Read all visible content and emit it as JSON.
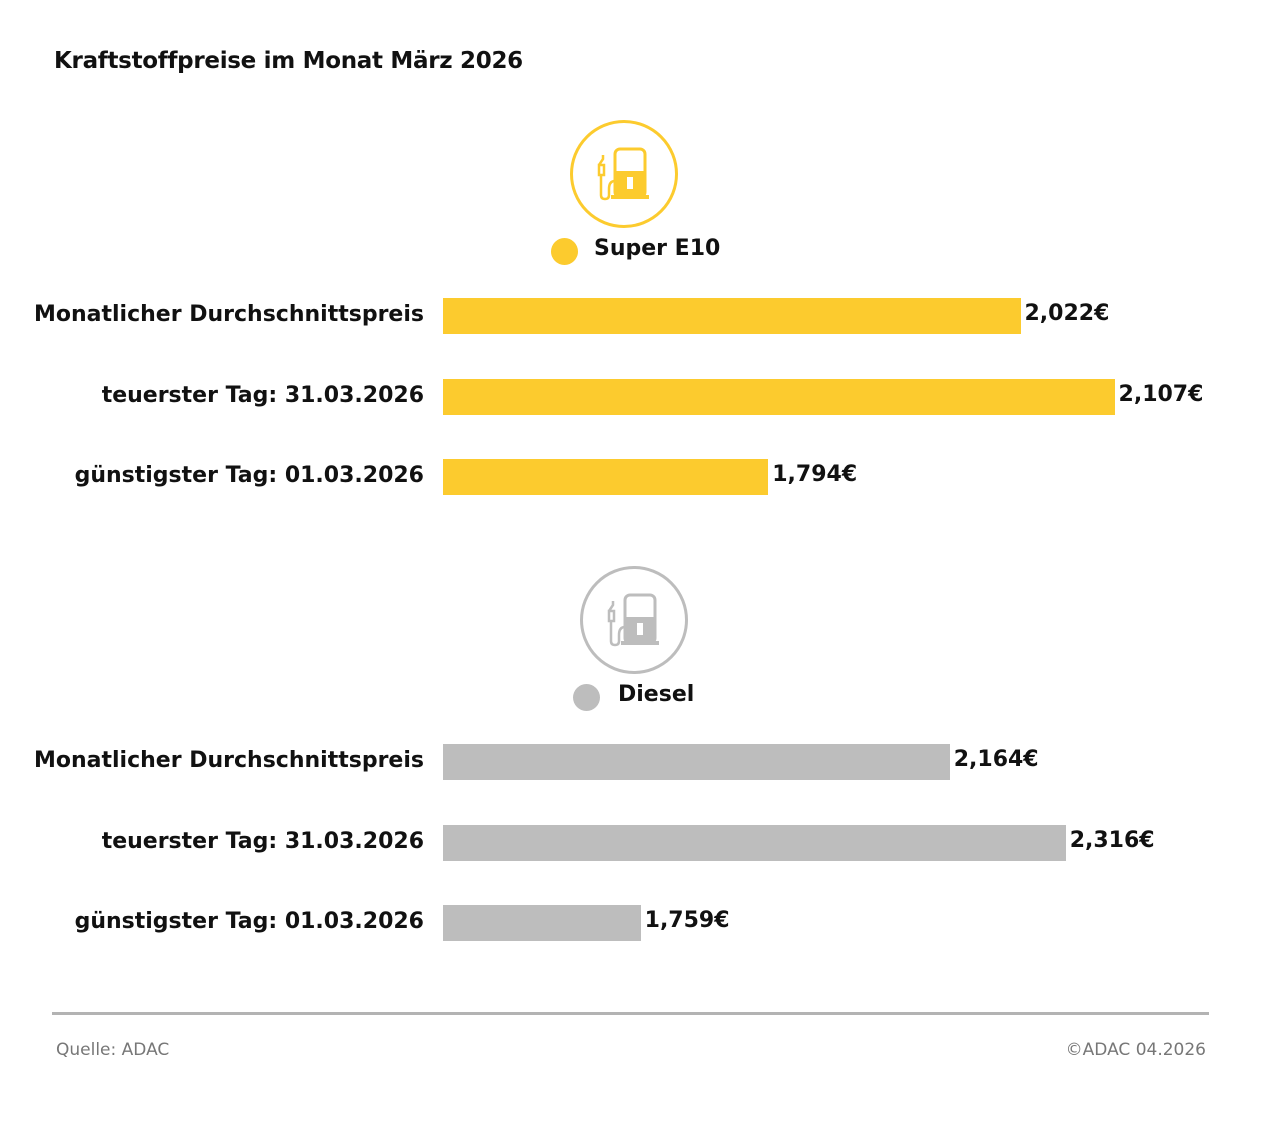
{
  "title": "Kraftstoffpreise im Monat März 2026",
  "chart_data": [
    {
      "type": "bar",
      "orientation": "horizontal",
      "series_name": "Super E10",
      "icon": "fuel-pump-icon",
      "color": "#fccb2e",
      "categories": [
        "Monatlicher Durchschnittspreis",
        "teuerster Tag: 31.03.2026",
        "günstigster Tag: 01.03.2026"
      ],
      "values": [
        2.022,
        2.107,
        1.794
      ],
      "value_labels": [
        "2,022€",
        "2,107€",
        "1,794€"
      ],
      "xlim": [
        1.5,
        2.196
      ],
      "grid": false
    },
    {
      "type": "bar",
      "orientation": "horizontal",
      "series_name": "Diesel",
      "icon": "fuel-pump-icon",
      "color": "#bdbdbd",
      "categories": [
        "Monatlicher Durchschnittspreis",
        "teuerster Tag: 31.03.2026",
        "günstigster Tag: 01.03.2026"
      ],
      "values": [
        2.164,
        2.316,
        1.759
      ],
      "value_labels": [
        "2,164€",
        "2,316€",
        "1,759€"
      ],
      "xlim": [
        1.5,
        2.509
      ],
      "grid": false
    }
  ],
  "footer": {
    "source": "Quelle: ADAC",
    "copyright": "©ADAC 04.2026"
  }
}
